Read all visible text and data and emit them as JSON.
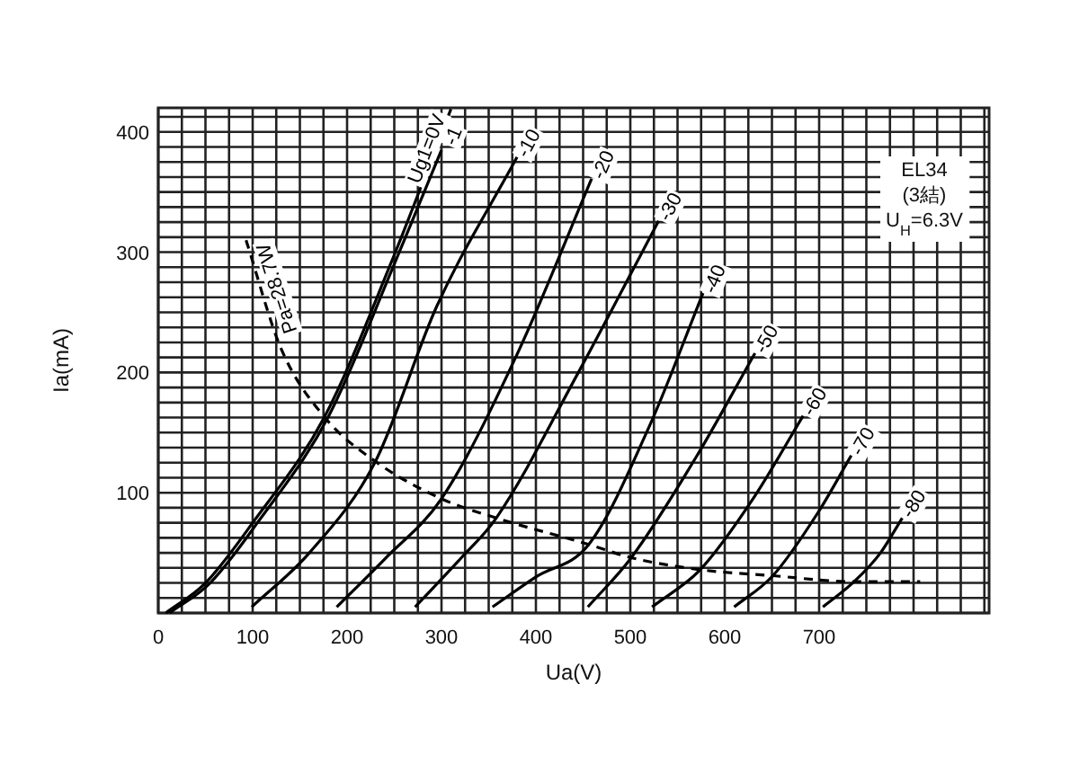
{
  "chart_data": {
    "type": "line",
    "xlabel": "Ua(V)",
    "ylabel": "Ia(mA)",
    "xlim": [
      0,
      880
    ],
    "ylim": [
      0,
      420
    ],
    "grid": true,
    "xticks": [
      0,
      {
        "value": 25,
        "label": null
      },
      {
        "value": 50,
        "label": null
      },
      {
        "value": 75,
        "label": null
      },
      100,
      {
        "value": 125,
        "label": null
      },
      {
        "value": 150,
        "label": null
      },
      {
        "value": 175,
        "label": null
      },
      200,
      {
        "value": 225,
        "label": null
      },
      {
        "value": 250,
        "label": null
      },
      {
        "value": 275,
        "label": null
      },
      300,
      {
        "value": 325,
        "label": null
      },
      {
        "value": 350,
        "label": null
      },
      {
        "value": 375,
        "label": null
      },
      400,
      {
        "value": 425,
        "label": null
      },
      {
        "value": 450,
        "label": null
      },
      {
        "value": 475,
        "label": null
      },
      500,
      {
        "value": 525,
        "label": null
      },
      {
        "value": 550,
        "label": null
      },
      {
        "value": 575,
        "label": null
      },
      600,
      {
        "value": 625,
        "label": null
      },
      {
        "value": 650,
        "label": null
      },
      {
        "value": 675,
        "label": null
      },
      700,
      {
        "value": 725,
        "label": null
      },
      {
        "value": 750,
        "label": null
      },
      {
        "value": 775,
        "label": null
      },
      {
        "value": 800,
        "label": null
      },
      {
        "value": 825,
        "label": null
      },
      {
        "value": 850,
        "label": null
      },
      {
        "value": 875,
        "label": null
      }
    ],
    "yticks": [
      {
        "value": 0,
        "label": null
      },
      {
        "value": 12.5,
        "label": null
      },
      {
        "value": 25,
        "label": null
      },
      {
        "value": 37.5,
        "label": null
      },
      {
        "value": 50,
        "label": null
      },
      {
        "value": 62.5,
        "label": null
      },
      {
        "value": 75,
        "label": null
      },
      {
        "value": 87.5,
        "label": null
      },
      100,
      {
        "value": 112.5,
        "label": null
      },
      {
        "value": 125,
        "label": null
      },
      {
        "value": 137.5,
        "label": null
      },
      {
        "value": 150,
        "label": null
      },
      {
        "value": 162.5,
        "label": null
      },
      {
        "value": 175,
        "label": null
      },
      {
        "value": 187.5,
        "label": null
      },
      200,
      {
        "value": 212.5,
        "label": null
      },
      {
        "value": 225,
        "label": null
      },
      {
        "value": 237.5,
        "label": null
      },
      {
        "value": 250,
        "label": null
      },
      {
        "value": 262.5,
        "label": null
      },
      {
        "value": 275,
        "label": null
      },
      {
        "value": 287.5,
        "label": null
      },
      300,
      {
        "value": 312.5,
        "label": null
      },
      {
        "value": 325,
        "label": null
      },
      {
        "value": 337.5,
        "label": null
      },
      {
        "value": 350,
        "label": null
      },
      {
        "value": 362.5,
        "label": null
      },
      {
        "value": 375,
        "label": null
      },
      {
        "value": 387.5,
        "label": null
      },
      400,
      {
        "value": 412.5,
        "label": null
      }
    ],
    "annotations": [
      "EL34",
      "(3結)",
      "U$_{H}$=6.3V"
    ],
    "series": [
      {
        "name": "Ug1=0V",
        "color": "#000000",
        "x": [
          8,
          50,
          100,
          176,
          246,
          310
        ],
        "values": [
          0,
          25,
          75,
          163,
          290,
          419
        ]
      },
      {
        "name": "-1",
        "color": "#000000",
        "x": [
          12,
          55,
          105,
          180,
          250,
          300
        ],
        "values": [
          0,
          25,
          75,
          163,
          290,
          385
        ]
      },
      {
        "name": "-10",
        "color": "#000000",
        "x": [
          99,
          160,
          230,
          295,
          380
        ],
        "values": [
          5,
          50,
          126,
          255,
          379
        ]
      },
      {
        "name": "-20",
        "color": "#000000",
        "x": [
          189,
          240,
          300,
          380,
          459
        ],
        "values": [
          5,
          45,
          95,
          215,
          361
        ]
      },
      {
        "name": "-30",
        "color": "#000000",
        "x": [
          272,
          320,
          358,
          445,
          530
        ],
        "values": [
          5,
          45,
          79,
          200,
          326
        ]
      },
      {
        "name": "-40",
        "color": "#000000",
        "x": [
          354,
          400,
          456,
          520,
          577
        ],
        "values": [
          5,
          30,
          57,
          155,
          266
        ]
      },
      {
        "name": "-50",
        "color": "#000000",
        "x": [
          455,
          501,
          570,
          632
        ],
        "values": [
          5,
          46,
          130,
          216
        ]
      },
      {
        "name": "-60",
        "color": "#000000",
        "x": [
          523,
          574,
          630,
          683
        ],
        "values": [
          5,
          36,
          95,
          164
        ]
      },
      {
        "name": "-70",
        "color": "#000000",
        "x": [
          610,
          651,
          700,
          734
        ],
        "values": [
          5,
          31,
          85,
          131
        ]
      },
      {
        "name": "-80",
        "color": "#000000",
        "x": [
          704,
          737,
          765,
          788
        ],
        "values": [
          5,
          26,
          50,
          79
        ]
      },
      {
        "name": "Pa=28.7W",
        "color": "#000000",
        "line_style": "dashed",
        "x": [
          93,
          130,
          176,
          230,
          300,
          358,
          456,
          501,
          574,
          651,
          737,
          807
        ],
        "values": [
          310,
          220,
          163,
          126,
          95,
          79,
          57,
          46,
          36,
          31,
          26,
          26
        ]
      }
    ]
  }
}
